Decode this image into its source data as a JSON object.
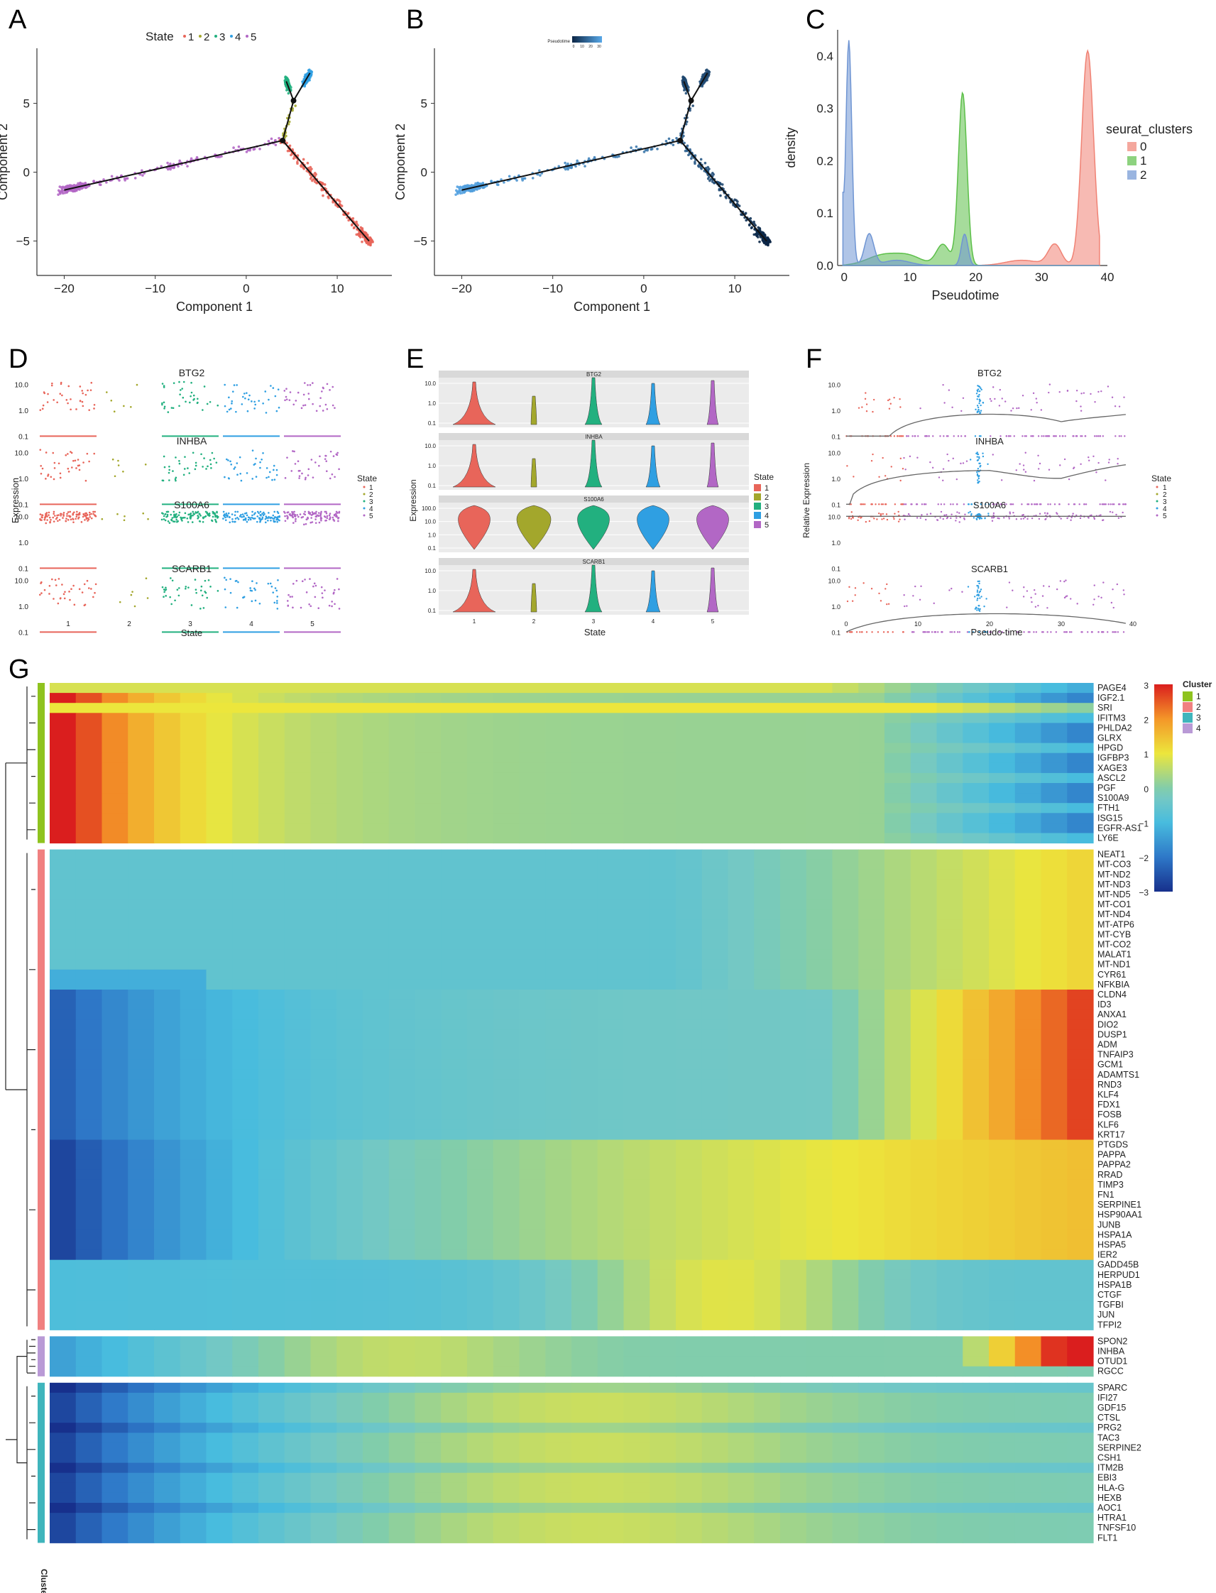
{
  "panels": {
    "a": "A",
    "b": "B",
    "c": "C",
    "d": "D",
    "e": "E",
    "f": "F",
    "g": "G"
  },
  "chart_data": [
    {
      "id": "A",
      "type": "scatter",
      "title": "State",
      "legend_items": [
        "1",
        "2",
        "3",
        "4",
        "5"
      ],
      "xlabel": "Component 1",
      "ylabel": "Component 2",
      "xticks": [
        "−20",
        "−10",
        "0",
        "10"
      ],
      "yticks": [
        "5",
        "0",
        "−5"
      ],
      "xlim": [
        -23,
        16
      ],
      "ylim": [
        -7.5,
        9
      ],
      "state_colors": [
        "#e8655a",
        "#a3a72c",
        "#22b07f",
        "#2f9fe2",
        "#b267c5"
      ],
      "branches": [
        {
          "name": "root-to-left",
          "state": 5,
          "from": [
            4,
            2.3
          ],
          "to": [
            -20,
            -1.3
          ]
        },
        {
          "name": "root-to-right",
          "state": 1,
          "from": [
            4,
            2.3
          ],
          "to": [
            13.5,
            -5
          ]
        },
        {
          "name": "root-to-top",
          "state": 2,
          "from": [
            4,
            2.3
          ],
          "to": [
            5.2,
            5.2
          ]
        },
        {
          "name": "top-to-4",
          "state": 4,
          "from": [
            5.2,
            5.2
          ],
          "to": [
            7,
            7.2
          ]
        },
        {
          "name": "top-to-3",
          "state": 3,
          "from": [
            5.2,
            5.2
          ],
          "to": [
            4.4,
            6.6
          ]
        }
      ]
    },
    {
      "id": "B",
      "type": "scatter",
      "legend_title": "Pseudotime",
      "legend_ticks": [
        "0",
        "10",
        "20",
        "30"
      ],
      "xlabel": "Component 1",
      "ylabel": "Component 2",
      "xticks": [
        "−20",
        "−10",
        "0",
        "10"
      ],
      "yticks": [
        "5",
        "0",
        "−5"
      ],
      "xlim": [
        -23,
        16
      ],
      "ylim": [
        -7.5,
        9
      ],
      "colors": [
        "#0b2646",
        "#58a8e8"
      ]
    },
    {
      "id": "C",
      "type": "area",
      "xlabel": "Pseudotime",
      "ylabel": "density",
      "xticks": [
        "0",
        "10",
        "20",
        "30",
        "40"
      ],
      "yticks": [
        "0.4",
        "0.3",
        "0.2",
        "0.1",
        "0.0"
      ],
      "xlim": [
        -1,
        40
      ],
      "ylim": [
        0,
        0.45
      ],
      "legend_title": "seurat_clusters",
      "series": [
        {
          "name": "0",
          "color": "#f08274",
          "peaks": [
            [
              37,
              0.41,
              0.9
            ],
            [
              32,
              0.04,
              1.0
            ],
            [
              27,
              0.01,
              2.5
            ]
          ]
        },
        {
          "name": "1",
          "color": "#5cbf49",
          "peaks": [
            [
              18,
              0.33,
              0.65
            ],
            [
              15,
              0.04,
              1.0
            ],
            [
              6,
              0.02,
              2.5
            ],
            [
              10,
              0.015,
              2.0
            ]
          ]
        },
        {
          "name": "2",
          "color": "#6f95d3",
          "peaks": [
            [
              0.7,
              0.43,
              0.45
            ],
            [
              3.8,
              0.06,
              0.7
            ],
            [
              18.3,
              0.06,
              0.5
            ],
            [
              8,
              0.01,
              2.0
            ]
          ]
        }
      ]
    },
    {
      "id": "D",
      "type": "scatter",
      "xlabel": "State",
      "ylabel": "Expression",
      "legend_title": "State",
      "legend_items": [
        "1",
        "2",
        "3",
        "4",
        "5"
      ],
      "genes": [
        "BTG2",
        "INHBA",
        "S100A6",
        "SCARB1"
      ],
      "xticks": [
        "1",
        "2",
        "3",
        "4",
        "5"
      ],
      "yticks": [
        "10.0",
        "1.0",
        "0.1"
      ]
    },
    {
      "id": "E",
      "type": "violin",
      "xlabel": "State",
      "ylabel": "Expression",
      "legend_title": "State",
      "legend_items": [
        "1",
        "2",
        "3",
        "4",
        "5"
      ],
      "genes": [
        "BTG2",
        "INHBA",
        "S100A6",
        "SCARB1"
      ],
      "xticks": [
        "1",
        "2",
        "3",
        "4",
        "5"
      ],
      "yticks": [
        "10.0",
        "1.0",
        "0.1"
      ],
      "yticks_s100a6": [
        "100.0",
        "10.0",
        "1.0",
        "0.1"
      ]
    },
    {
      "id": "F",
      "type": "scatter",
      "xlabel": "Pseudo-time",
      "ylabel": "Relative Expression",
      "legend_title": "State",
      "legend_items": [
        "1",
        "2",
        "3",
        "4",
        "5"
      ],
      "genes": [
        "BTG2",
        "INHBA",
        "S100A6",
        "SCARB1"
      ],
      "xticks": [
        "0",
        "10",
        "20",
        "30",
        "40"
      ],
      "yticks": [
        "10.0",
        "1.0",
        "0.1"
      ],
      "xlim": [
        0,
        40
      ]
    },
    {
      "id": "G",
      "type": "heatmap",
      "legend_title": "Cluster",
      "scale_ticks": [
        "3",
        "2",
        "1",
        "0",
        "−1",
        "−2",
        "−3"
      ],
      "scale_range": [
        -3,
        3
      ],
      "cluster_label": "Cluster",
      "clusters": [
        {
          "name": "1",
          "color": "#8fc31f",
          "genes": [
            "PAGE4",
            "IGF2.1",
            "SRI",
            "IFITM3",
            "PHLDA2",
            "GLRX",
            "HPGD",
            "IGFBP3",
            "XAGE3",
            "ASCL2",
            "PGF",
            "S100A9",
            "FTH1",
            "ISG15",
            "EGFR-AS1",
            "LY6E"
          ]
        },
        {
          "name": "2",
          "color": "#f08080",
          "genes": [
            "NEAT1",
            "MT-CO3",
            "MT-ND2",
            "MT-ND3",
            "MT-ND5",
            "MT-CO1",
            "MT-ND4",
            "MT-ATP6",
            "MT-CYB",
            "MT-CO2",
            "MALAT1",
            "MT-ND1",
            "CYR61",
            "NFKBIA",
            "CLDN4",
            "ID3",
            "ANXA1",
            "DIO2",
            "DUSP1",
            "ADM",
            "TNFAIP3",
            "GCM1",
            "ADAMTS1",
            "RND3",
            "KLF4",
            "FDX1",
            "FOSB",
            "KLF6",
            "KRT17",
            "PTGDS",
            "PAPPA",
            "PAPPA2",
            "RRAD",
            "TIMP3",
            "FN1",
            "SERPINE1",
            "HSP90AA1",
            "JUNB",
            "HSPA1A",
            "HSPA5",
            "IER2",
            "GADD45B",
            "HERPUD1",
            "HSPA1B",
            "CTGF",
            "TGFBI",
            "JUN",
            "TFPI2"
          ]
        },
        {
          "name": "4",
          "color": "#b99ad6",
          "genes": [
            "SPON2",
            "INHBA",
            "OTUD1",
            "RGCC"
          ]
        },
        {
          "name": "3",
          "color": "#3fb5bc",
          "genes": [
            "SPARC",
            "IFI27",
            "GDF15",
            "CTSL",
            "PRG2",
            "TAC3",
            "SERPINE2",
            "CSH1",
            "ITM2B",
            "EBI3",
            "HLA-G",
            "HEXB",
            "AOC1",
            "HTRA1",
            "TNFSF10",
            "FLT1"
          ]
        }
      ],
      "legend_clusters": [
        {
          "name": "1",
          "color": "#8fc31f"
        },
        {
          "name": "2",
          "color": "#f08080"
        },
        {
          "name": "3",
          "color": "#3fb5bc"
        },
        {
          "name": "4",
          "color": "#b99ad6"
        }
      ]
    }
  ]
}
